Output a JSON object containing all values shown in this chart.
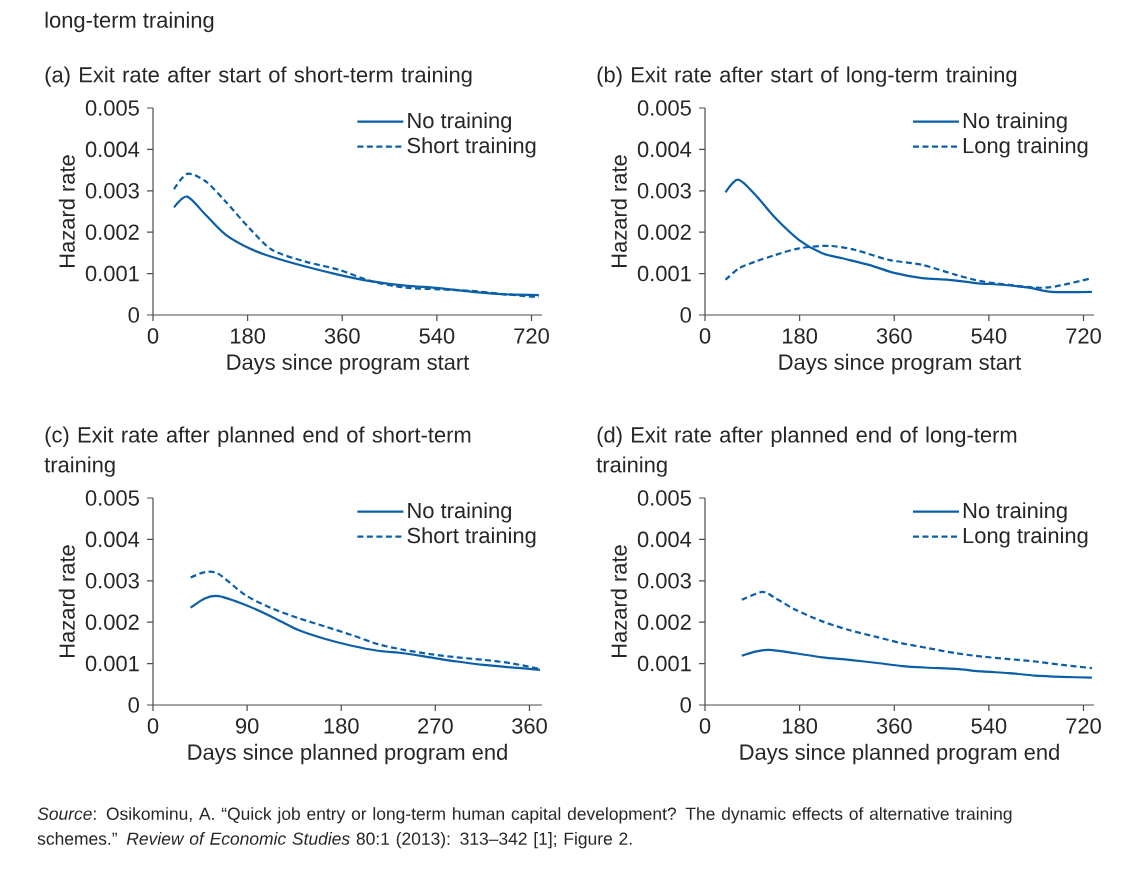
{
  "chart_data": [
    {
      "type": "line",
      "title": "(a) Exit rate after start of short-term training",
      "xlabel": "Days since program start",
      "ylabel": "Hazard rate",
      "annotations": [
        "long-term training"
      ],
      "xlim": [
        0,
        740
      ],
      "xticks": [
        0,
        180,
        360,
        540,
        720
      ],
      "ylim": [
        0,
        0.005
      ],
      "yticks": [
        0,
        0.001,
        0.002,
        0.003,
        0.004,
        0.005
      ],
      "legend": "top right",
      "grid": false,
      "series": [
        {
          "name": "No training",
          "color": "#0b5ea8",
          "line_style": "solid",
          "x": [
            40,
            65,
            100,
            138,
            183,
            227,
            290,
            354,
            417,
            480,
            544,
            607,
            670,
            734
          ],
          "values": [
            0.0026,
            0.00286,
            0.00242,
            0.00194,
            0.00161,
            0.0014,
            0.00117,
            0.00097,
            0.00081,
            0.00071,
            0.00065,
            0.00056,
            0.0005,
            0.00048
          ]
        },
        {
          "name": "Short training",
          "color": "#0b5ea8",
          "line_style": "dashed",
          "x": [
            40,
            65,
            100,
            138,
            183,
            227,
            290,
            354,
            417,
            480,
            544,
            607,
            670,
            734
          ],
          "values": [
            0.00304,
            0.00341,
            0.00323,
            0.00274,
            0.0021,
            0.00157,
            0.00129,
            0.00109,
            0.00081,
            0.00066,
            0.00062,
            0.00058,
            0.0005,
            0.00043
          ]
        }
      ]
    },
    {
      "type": "line",
      "title": "(b) Exit rate after start of long-term training",
      "xlabel": "Days since program start",
      "ylabel": "Hazard rate",
      "xlim": [
        0,
        740
      ],
      "xticks": [
        0,
        180,
        360,
        540,
        720
      ],
      "ylim": [
        0,
        0.005
      ],
      "yticks": [
        0,
        0.001,
        0.002,
        0.003,
        0.004,
        0.005
      ],
      "legend": "top right",
      "grid": false,
      "series": [
        {
          "name": "No training",
          "color": "#0b5ea8",
          "line_style": "solid",
          "x": [
            39,
            63,
            96,
            134,
            179,
            223,
            261,
            312,
            362,
            413,
            464,
            515,
            565,
            616,
            660,
            736
          ],
          "values": [
            0.00296,
            0.00327,
            0.0029,
            0.00234,
            0.00181,
            0.00149,
            0.00137,
            0.00121,
            0.00101,
            0.00089,
            0.00085,
            0.00077,
            0.00073,
            0.00066,
            0.00056,
            0.00056
          ]
        },
        {
          "name": "Long training",
          "color": "#0b5ea8",
          "line_style": "dashed",
          "x": [
            39,
            65,
            96,
            134,
            179,
            236,
            286,
            350,
            413,
            477,
            527,
            578,
            628,
            667,
            736
          ],
          "values": [
            0.00085,
            0.00113,
            0.00129,
            0.00145,
            0.00161,
            0.00167,
            0.00157,
            0.00133,
            0.00121,
            0.00097,
            0.00081,
            0.00073,
            0.00066,
            0.00069,
            0.00089
          ]
        }
      ]
    },
    {
      "type": "line",
      "title": "(c) Exit rate after planned end of short-term training",
      "xlabel": "Days since planned program end",
      "ylabel": "Hazard rate",
      "xlim": [
        0,
        372
      ],
      "xticks": [
        0,
        90,
        180,
        270,
        360
      ],
      "ylim": [
        0,
        0.005
      ],
      "yticks": [
        0,
        0.001,
        0.002,
        0.003,
        0.004,
        0.005
      ],
      "legend": "top right",
      "grid": false,
      "series": [
        {
          "name": "No training",
          "color": "#0b5ea8",
          "line_style": "solid",
          "x": [
            36,
            50,
            63,
            88,
            113,
            139,
            164,
            190,
            215,
            240,
            265,
            291,
            316,
            342,
            370
          ],
          "values": [
            0.00235,
            0.00258,
            0.00263,
            0.00242,
            0.00214,
            0.00181,
            0.0016,
            0.00143,
            0.00131,
            0.00125,
            0.00115,
            0.00105,
            0.00097,
            0.00091,
            0.00085
          ]
        },
        {
          "name": "Short training",
          "color": "#0b5ea8",
          "line_style": "dashed",
          "x": [
            36,
            50,
            63,
            88,
            113,
            139,
            164,
            190,
            215,
            240,
            265,
            291,
            316,
            342,
            370
          ],
          "values": [
            0.00308,
            0.00321,
            0.00316,
            0.00266,
            0.00234,
            0.0021,
            0.0019,
            0.00169,
            0.00147,
            0.00133,
            0.00123,
            0.00115,
            0.00109,
            0.00101,
            0.00087
          ]
        }
      ]
    },
    {
      "type": "line",
      "title": "(d) Exit rate after planned end of long-term training",
      "xlabel": "Days since planned program end",
      "ylabel": "Hazard rate",
      "annotations": [
        "*Source*: Osikominu, A. “Quick job entry or long-term human capital development? The dynamic effects of alternative training schemes.” *Review of Economic Studies* 80:1 (2013): 313–342 [1]; Figure 2."
      ],
      "xlim": [
        0,
        740
      ],
      "xticks": [
        0,
        180,
        360,
        540,
        720
      ],
      "ylim": [
        0,
        0.005
      ],
      "yticks": [
        0,
        0.001,
        0.002,
        0.003,
        0.004,
        0.005
      ],
      "legend": "top right",
      "grid": false,
      "series": [
        {
          "name": "No training",
          "color": "#0b5ea8",
          "line_style": "solid",
          "x": [
            70,
            96,
            122,
            172,
            223,
            274,
            324,
            375,
            426,
            477,
            527,
            578,
            628,
            679,
            736
          ],
          "values": [
            0.00119,
            0.00129,
            0.00133,
            0.00125,
            0.00115,
            0.00109,
            0.00102,
            0.00094,
            0.0009,
            0.00087,
            0.00081,
            0.00077,
            0.00071,
            0.00068,
            0.00066
          ]
        },
        {
          "name": "Long training",
          "color": "#0b5ea8",
          "line_style": "dashed",
          "x": [
            70,
            109,
            134,
            172,
            223,
            274,
            324,
            375,
            426,
            477,
            527,
            578,
            628,
            679,
            736
          ],
          "values": [
            0.00254,
            0.00273,
            0.00258,
            0.0023,
            0.00202,
            0.00181,
            0.00165,
            0.00149,
            0.00137,
            0.00125,
            0.00117,
            0.00111,
            0.00105,
            0.00097,
            0.00089
          ]
        }
      ]
    }
  ]
}
